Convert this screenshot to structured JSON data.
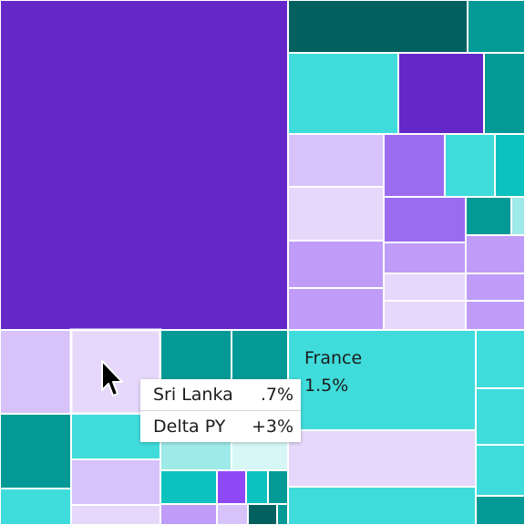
{
  "chart_data": {
    "type": "treemap",
    "hovered": {
      "label": "Sri Lanka",
      "value": ".7%"
    },
    "labeled_cell": {
      "label": "France",
      "value": "1.5%"
    }
  },
  "tooltip": {
    "rows": [
      {
        "key": "Sri Lanka",
        "value": ".7%"
      },
      {
        "key": "Delta PY",
        "value": "+3%"
      }
    ]
  },
  "colors": {
    "dark_purple": "#6528c8",
    "purple": "#9b6cf0",
    "violet": "#8f48f5",
    "lavender": "#bf9cf7",
    "light_lavender": "#d7c2f9",
    "pale_lavender": "#e5d8fb",
    "dark_teal": "#02605f",
    "teal": "#039a96",
    "cyan": "#0cc2bf",
    "turquoise": "#40dcdb",
    "light_cyan": "#9eeae8",
    "pale_cyan": "#d6f7f6"
  },
  "icons": {
    "pointer": "mouse-pointer-icon"
  }
}
